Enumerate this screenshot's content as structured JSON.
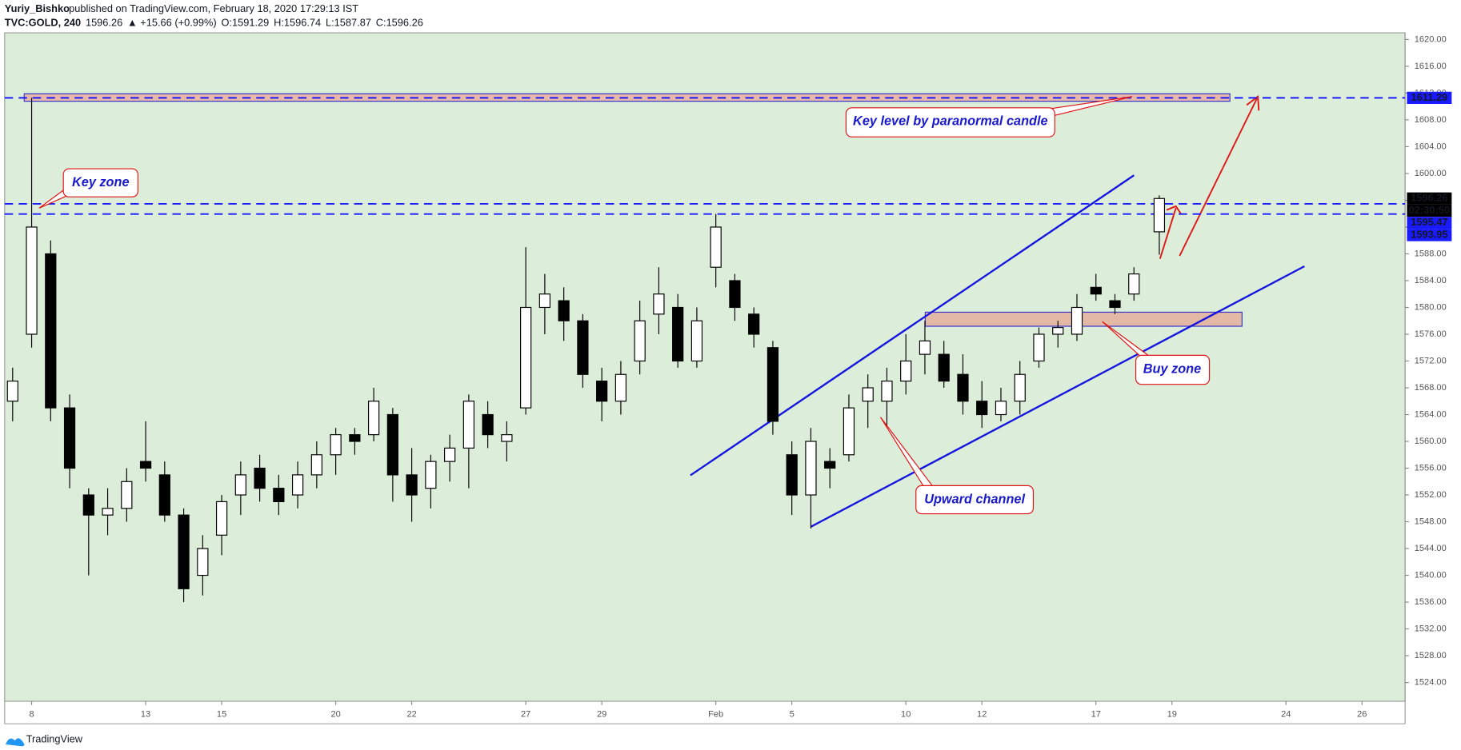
{
  "chart_data": {
    "type": "candlestick",
    "author": "Yuriy_Bishko",
    "title": "published on TradingView.com, February 18, 2020 17:29:13 IST",
    "symbol": "TVC:GOLD, 240",
    "last": "1596.26",
    "change": "▲ +15.66 (+0.99%)",
    "ohlc_labels": [
      {
        "label": "O:",
        "value": "1591.29"
      },
      {
        "label": "H:",
        "value": "1596.74"
      },
      {
        "label": "L:",
        "value": "1587.87"
      },
      {
        "label": "C:",
        "value": "1596.26"
      }
    ],
    "x": [
      -3,
      0,
      3,
      6,
      9,
      12,
      15,
      18,
      21,
      24,
      27,
      30,
      33,
      36,
      39,
      42,
      45,
      48,
      51,
      54,
      57,
      60,
      63,
      66,
      69,
      72,
      75,
      78,
      81,
      84,
      87,
      90,
      93,
      96,
      99,
      102,
      105,
      108,
      111,
      114,
      117,
      120,
      123,
      126,
      129,
      132,
      135,
      138,
      141,
      144,
      147,
      150,
      153,
      156,
      159,
      162,
      165,
      168,
      171,
      174,
      178
    ],
    "open": [
      1566,
      1576,
      1588,
      1565,
      1552,
      1549,
      1550,
      1557,
      1555,
      1549,
      1540,
      1546,
      1552,
      1556,
      1553,
      1552,
      1555,
      1558,
      1561,
      1561,
      1564,
      1555,
      1553,
      1557,
      1559,
      1564,
      1560,
      1565,
      1580,
      1581,
      1578,
      1569,
      1566,
      1572,
      1579,
      1580,
      1572,
      1586,
      1584,
      1579,
      1574,
      1558,
      1552,
      1557,
      1558,
      1566,
      1566,
      1569,
      1573,
      1573,
      1570,
      1566,
      1564,
      1566,
      1572,
      1576,
      1576,
      1583,
      1581,
      1582,
      1591.29
    ],
    "high": [
      1571,
      1611.29,
      1590,
      1567,
      1553,
      1553,
      1556,
      1563,
      1557,
      1550,
      1546,
      1552,
      1557,
      1558,
      1555,
      1557,
      1560,
      1562,
      1562,
      1568,
      1565,
      1559,
      1558,
      1561,
      1567,
      1566,
      1563,
      1589,
      1585,
      1583,
      1579,
      1571,
      1572,
      1581,
      1586,
      1582,
      1580,
      1593.95,
      1585,
      1580,
      1575,
      1560,
      1562,
      1559,
      1567,
      1570,
      1571,
      1576,
      1578,
      1575,
      1573,
      1569,
      1568,
      1572,
      1577,
      1578,
      1582,
      1585,
      1582,
      1586,
      1596.74
    ],
    "low": [
      1563,
      1574,
      1563,
      1553,
      1540,
      1546,
      1548,
      1554,
      1548,
      1536,
      1537,
      1543,
      1549,
      1551,
      1549,
      1550,
      1553,
      1555,
      1558,
      1560,
      1551,
      1548,
      1550,
      1554,
      1553,
      1559,
      1557,
      1564,
      1576,
      1575,
      1568,
      1563,
      1564,
      1570,
      1576,
      1571,
      1571,
      1583,
      1578,
      1574,
      1561,
      1549,
      1547,
      1553,
      1557,
      1562,
      1562,
      1567,
      1570,
      1568,
      1564,
      1562,
      1563,
      1564,
      1571,
      1574,
      1575,
      1581,
      1579,
      1581,
      1587.87
    ],
    "close": [
      1569,
      1592,
      1565,
      1556,
      1549,
      1550,
      1554,
      1556,
      1549,
      1538,
      1544,
      1551,
      1555,
      1553,
      1551,
      1555,
      1558,
      1561,
      1560,
      1566,
      1555,
      1552,
      1557,
      1559,
      1566,
      1561,
      1561,
      1580,
      1582,
      1578,
      1570,
      1566,
      1570,
      1578,
      1582,
      1572,
      1578,
      1592,
      1580,
      1576,
      1563,
      1552,
      1560,
      1556,
      1565,
      1568,
      1569,
      1572,
      1575,
      1569,
      1566,
      1564,
      1566,
      1570,
      1576,
      1577,
      1580,
      1582,
      1580,
      1585,
      1596.26
    ],
    "up_color": "#ffffff",
    "down_color": "#000000",
    "xlim": [
      -4.26,
      216.8
    ],
    "ylim": [
      1521.2,
      1621
    ],
    "xticks": [
      {
        "value": 0,
        "label": "8"
      },
      {
        "value": 18,
        "label": "13"
      },
      {
        "value": 30,
        "label": "15"
      },
      {
        "value": 48,
        "label": "20"
      },
      {
        "value": 60,
        "label": "22"
      },
      {
        "value": 78,
        "label": "27"
      },
      {
        "value": 90,
        "label": "29"
      },
      {
        "value": 108,
        "label": "Feb"
      },
      {
        "value": 120,
        "label": "5"
      },
      {
        "value": 138,
        "label": "10"
      },
      {
        "value": 150,
        "label": "12"
      },
      {
        "value": 168,
        "label": "17"
      },
      {
        "value": 180,
        "label": "19"
      },
      {
        "value": 198,
        "label": "24"
      },
      {
        "value": 210,
        "label": "26"
      }
    ],
    "yticks": [
      {
        "value": 1524,
        "label": "1524.00"
      },
      {
        "value": 1528,
        "label": "1528.00"
      },
      {
        "value": 1532,
        "label": "1532.00"
      },
      {
        "value": 1536,
        "label": "1536.00"
      },
      {
        "value": 1540,
        "label": "1540.00"
      },
      {
        "value": 1544,
        "label": "1544.00"
      },
      {
        "value": 1548,
        "label": "1548.00"
      },
      {
        "value": 1552,
        "label": "1552.00"
      },
      {
        "value": 1556,
        "label": "1556.00"
      },
      {
        "value": 1560,
        "label": "1560.00"
      },
      {
        "value": 1564,
        "label": "1564.00"
      },
      {
        "value": 1568,
        "label": "1568.00"
      },
      {
        "value": 1572,
        "label": "1572.00"
      },
      {
        "value": 1576,
        "label": "1576.00"
      },
      {
        "value": 1580,
        "label": "1580.00"
      },
      {
        "value": 1584,
        "label": "1584.00"
      },
      {
        "value": 1588,
        "label": "1588.00"
      },
      {
        "value": 1592,
        "label": "1592.00"
      },
      {
        "value": 1596,
        "label": "1596.00"
      },
      {
        "value": 1600,
        "label": "1600.00"
      },
      {
        "value": 1604,
        "label": "1604.00"
      },
      {
        "value": 1608,
        "label": "1608.00"
      },
      {
        "value": 1612,
        "label": "1612.00"
      },
      {
        "value": 1616,
        "label": "1616.00"
      },
      {
        "value": 1620,
        "label": "1620.00"
      }
    ],
    "levels": [
      1611.29,
      1595.47,
      1593.95
    ],
    "level_color": "#1a1aff",
    "countdown": "02:30:50",
    "annotations": [
      "Key zone",
      "Key level by paranormal candle",
      "Upward channel",
      "Buy zone"
    ],
    "footer": "TradingView"
  }
}
